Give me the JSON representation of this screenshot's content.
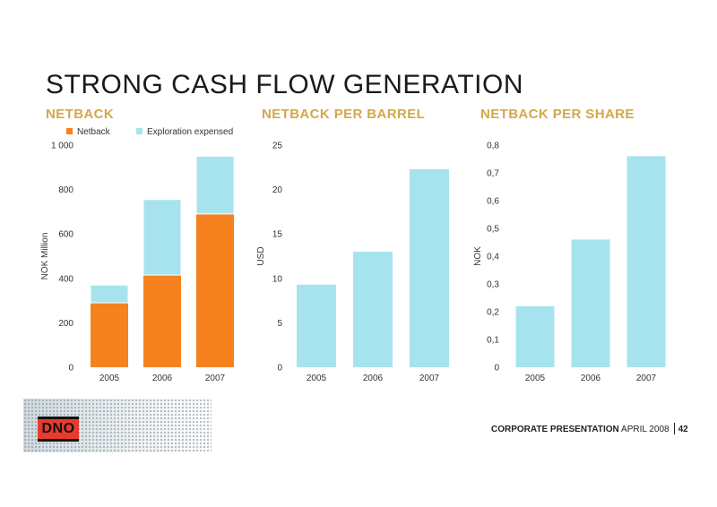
{
  "slide": {
    "title": "STRONG CASH FLOW GENERATION",
    "footer": {
      "label_bold": "CORPORATE PRESENTATION",
      "label_date": "APRIL 2008",
      "page": "42",
      "logo_text": "DNO"
    }
  },
  "colors": {
    "orange": "#f5821f",
    "light_blue": "#a7e3ef",
    "gold": "#d4a84a"
  },
  "chart_data": [
    {
      "type": "bar",
      "stacked": true,
      "title": "NETBACK",
      "ylabel": "NOK Million",
      "xlabel": "",
      "categories": [
        "2005",
        "2006",
        "2007"
      ],
      "series": [
        {
          "name": "Netback",
          "values": [
            290,
            415,
            690
          ],
          "color": "#f5821f"
        },
        {
          "name": "Exploration expensed",
          "values": [
            80,
            340,
            260
          ],
          "color": "#a7e3ef"
        }
      ],
      "ylim": [
        0,
        1000
      ],
      "yticks": [
        0,
        200,
        400,
        600,
        800,
        1000
      ],
      "ytick_labels": [
        "0",
        "200",
        "400",
        "600",
        "800",
        "1 000"
      ],
      "legend": "top",
      "grid": false
    },
    {
      "type": "bar",
      "title": "NETBACK PER BARREL",
      "ylabel": "USD",
      "xlabel": "",
      "categories": [
        "2005",
        "2006",
        "2007"
      ],
      "series": [
        {
          "values": [
            9.3,
            13.0,
            22.3
          ],
          "color": "#a7e3ef"
        }
      ],
      "ylim": [
        0,
        25
      ],
      "yticks": [
        0,
        5,
        10,
        15,
        20,
        25
      ],
      "ytick_labels": [
        "0",
        "5",
        "10",
        "15",
        "20",
        "25"
      ],
      "grid": false
    },
    {
      "type": "bar",
      "title": "NETBACK PER SHARE",
      "ylabel": "NOK",
      "xlabel": "",
      "categories": [
        "2005",
        "2006",
        "2007"
      ],
      "series": [
        {
          "values": [
            0.22,
            0.46,
            0.76
          ],
          "color": "#a7e3ef"
        }
      ],
      "ylim": [
        0,
        0.8
      ],
      "yticks": [
        0,
        0.1,
        0.2,
        0.3,
        0.4,
        0.5,
        0.6,
        0.7,
        0.8
      ],
      "ytick_labels": [
        "0",
        "0,1",
        "0,2",
        "0,3",
        "0,4",
        "0,5",
        "0,6",
        "0,7",
        "0,8"
      ],
      "grid": false
    }
  ]
}
